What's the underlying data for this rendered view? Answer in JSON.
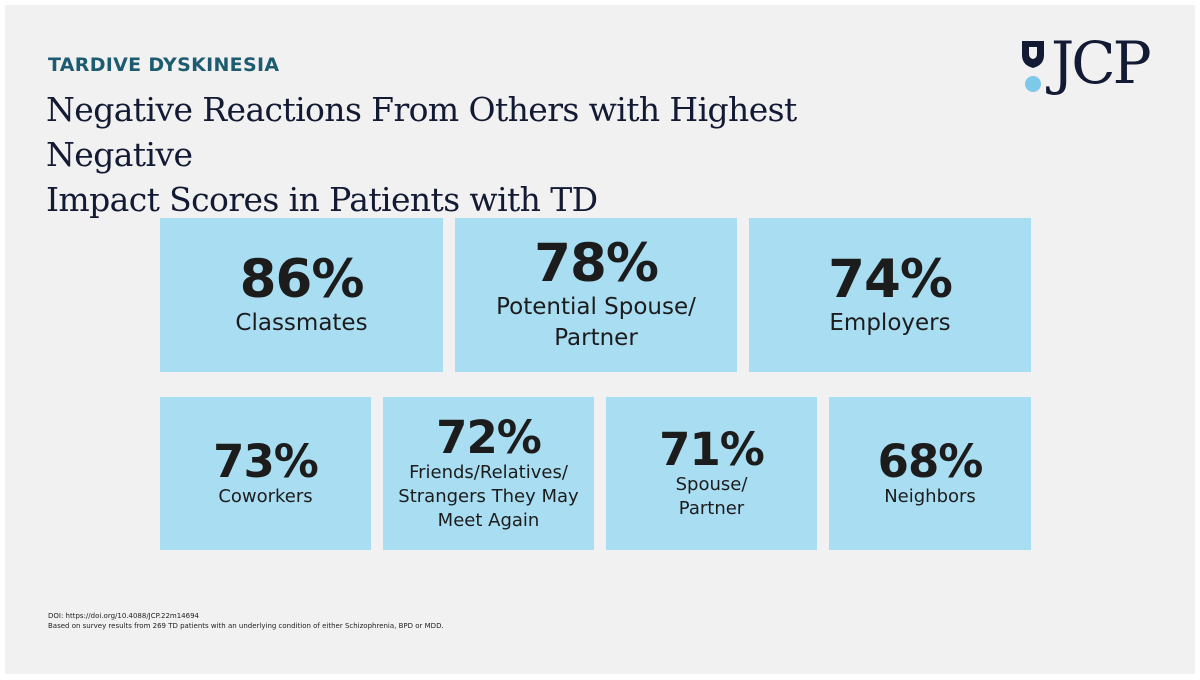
{
  "header": {
    "eyebrow": "TARDIVE DYSKINESIA",
    "title_line1": "Negative Reactions From Others with Highest Negative",
    "title_line2": "Impact Scores in Patients with TD"
  },
  "logo": {
    "text": "JCP",
    "icon": "shield-dot-logo-icon"
  },
  "stats": [
    {
      "value": "86%",
      "label_lines": [
        "Classmates"
      ]
    },
    {
      "value": "78%",
      "label_lines": [
        "Potential Spouse/",
        "Partner"
      ]
    },
    {
      "value": "74%",
      "label_lines": [
        "Employers"
      ]
    },
    {
      "value": "73%",
      "label_lines": [
        "Coworkers"
      ]
    },
    {
      "value": "72%",
      "label_lines": [
        "Friends/Relatives/",
        "Strangers They May",
        "Meet Again"
      ]
    },
    {
      "value": "71%",
      "label_lines": [
        "Spouse/",
        "Partner"
      ]
    },
    {
      "value": "68%",
      "label_lines": [
        "Neighbors"
      ]
    }
  ],
  "footer": {
    "doi": "DOI: https://doi.org/10.4088/JCP.22m14694",
    "note": "Based on survey results from 269 TD patients with an underlying condition of either Schizophrenia, BPD or MDD."
  },
  "colors": {
    "background": "#f1f1f1",
    "tile": "#a8ddf2",
    "eyebrow": "#1d5b70",
    "title": "#131a33",
    "logo_dot": "#7ec8e8"
  }
}
